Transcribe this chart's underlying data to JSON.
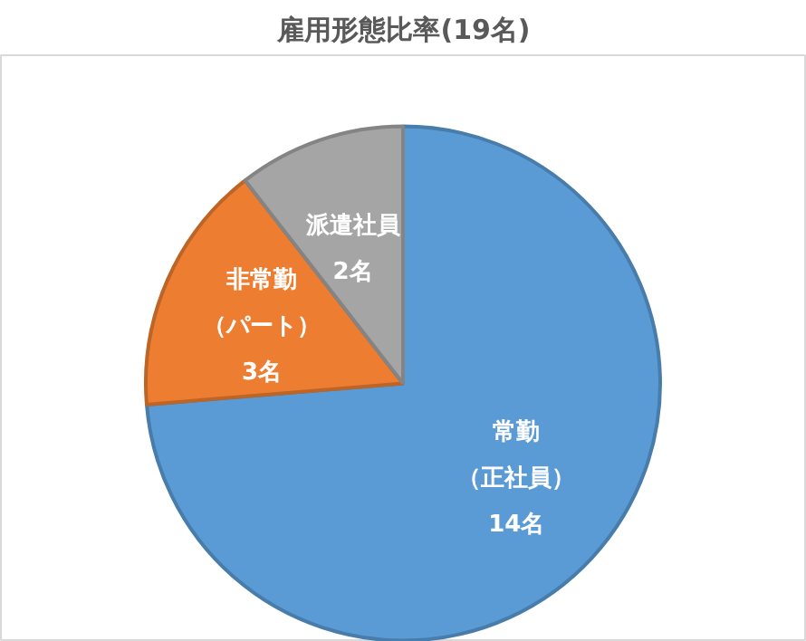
{
  "chart_data": {
    "type": "pie",
    "title": "雇用形態比率(19名)",
    "categories": [
      "常勤（正社員）",
      "非常勤（パート）",
      "派遣社員"
    ],
    "values": [
      14,
      3,
      2
    ],
    "colors": [
      "#5b9bd5",
      "#ed7d31",
      "#a5a5a5"
    ],
    "value_labels": [
      "14名",
      "3名",
      "2名"
    ]
  }
}
